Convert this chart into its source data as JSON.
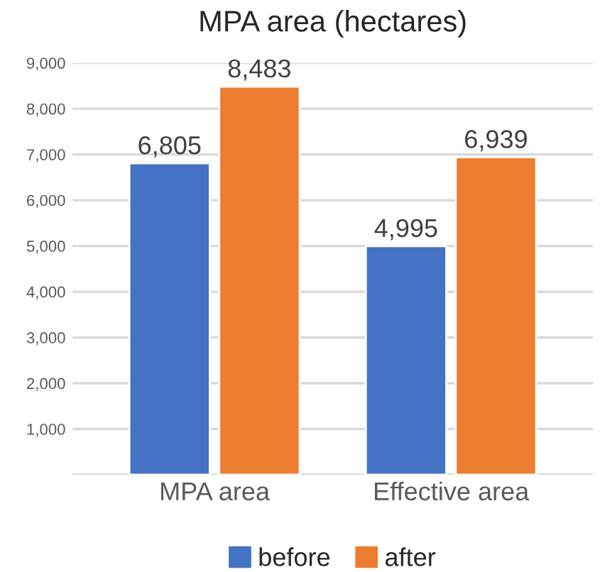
{
  "chart_data": {
    "type": "bar",
    "title": "MPA area (hectares)",
    "categories": [
      "MPA area",
      "Effective area"
    ],
    "series": [
      {
        "name": "before",
        "color": "#4472c4",
        "values": [
          6805,
          4995
        ],
        "value_labels": [
          "6,805",
          "4,995"
        ]
      },
      {
        "name": "after",
        "color": "#ed7d31",
        "values": [
          8483,
          6939
        ],
        "value_labels": [
          "8,483",
          "6,939"
        ]
      }
    ],
    "ylim": [
      0,
      9000
    ],
    "yticks": [
      {
        "value": 1000,
        "label": "1,000"
      },
      {
        "value": 2000,
        "label": "2,000"
      },
      {
        "value": 3000,
        "label": "3,000"
      },
      {
        "value": 4000,
        "label": "4,000"
      },
      {
        "value": 5000,
        "label": "5,000"
      },
      {
        "value": 6000,
        "label": "6,000"
      },
      {
        "value": 7000,
        "label": "7,000"
      },
      {
        "value": 8000,
        "label": "8,000"
      },
      {
        "value": 9000,
        "label": "9,000"
      }
    ],
    "grid": "y",
    "legend": "bottom"
  }
}
